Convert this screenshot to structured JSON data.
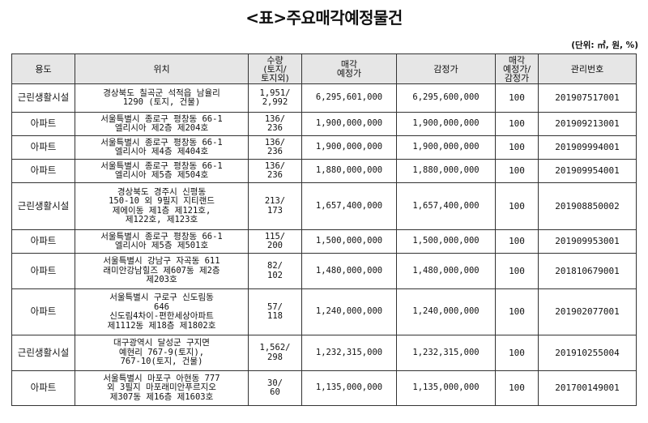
{
  "title": "<표>주요매각예정물건",
  "unit": "(단위: ㎡, 원, %)",
  "headers": {
    "use": "용도",
    "location": "위치",
    "quantity": "수량\n(토지/\n토지외)",
    "sale_price": "매각\n예정가",
    "appraisal": "감정가",
    "ratio": "매각\n예정가/\n감정가",
    "mgmt_no": "관리번호"
  },
  "rows": [
    {
      "use": "근린생활시설",
      "location": "경상북도 칠곡군 석적읍 남율리\n1290 (토지, 건물)",
      "quantity": "1,951/\n2,992",
      "sale_price": "6,295,601,000",
      "appraisal": "6,295,600,000",
      "ratio": "100",
      "mgmt_no": "201907517001"
    },
    {
      "use": "아파트",
      "location": "서울특별시 종로구 평창동 66-1\n엘리시아 제2층 제204호",
      "quantity": "136/\n236",
      "sale_price": "1,900,000,000",
      "appraisal": "1,900,000,000",
      "ratio": "100",
      "mgmt_no": "201909213001"
    },
    {
      "use": "아파트",
      "location": "서울특별시 종로구 평창동 66-1\n엘리시아 제4층 제404호",
      "quantity": "136/\n236",
      "sale_price": "1,900,000,000",
      "appraisal": "1,900,000,000",
      "ratio": "100",
      "mgmt_no": "201909994001"
    },
    {
      "use": "아파트",
      "location": "서울특별시 종로구 평창동 66-1\n엘리시아 제5층 제504호",
      "quantity": "136/\n236",
      "sale_price": "1,880,000,000",
      "appraisal": "1,880,000,000",
      "ratio": "100",
      "mgmt_no": "201909954001"
    },
    {
      "use": "근린생활시설",
      "location": "경상북도 경주시 신평동\n150-10 외 9필지 지티랜드\n제에이동 제1층 제121호,\n제122호, 제123호",
      "quantity": "213/\n173",
      "sale_price": "1,657,400,000",
      "appraisal": "1,657,400,000",
      "ratio": "100",
      "mgmt_no": "201908850002"
    },
    {
      "use": "아파트",
      "location": "서울특별시 종로구 평창동 66-1\n엘리시아 제5층 제501호",
      "quantity": "115/\n200",
      "sale_price": "1,500,000,000",
      "appraisal": "1,500,000,000",
      "ratio": "100",
      "mgmt_no": "201909953001"
    },
    {
      "use": "아파트",
      "location": "서울특별시 강남구 자곡동 611\n래미안강남힐즈 제607동 제2층\n제203호",
      "quantity": "82/\n102",
      "sale_price": "1,480,000,000",
      "appraisal": "1,480,000,000",
      "ratio": "100",
      "mgmt_no": "201810679001"
    },
    {
      "use": "아파트",
      "location": "서울특별시 구로구 신도림동\n646\n신도림4차이-편한세상아파트\n제1112동 제18층 제1802호",
      "quantity": "57/\n118",
      "sale_price": "1,240,000,000",
      "appraisal": "1,240,000,000",
      "ratio": "100",
      "mgmt_no": "201902077001"
    },
    {
      "use": "근린생활시설",
      "location": "대구광역시 달성군 구지면\n예현리 767-9(토지),\n767-10(토지, 건물)",
      "quantity": "1,562/\n298",
      "sale_price": "1,232,315,000",
      "appraisal": "1,232,315,000",
      "ratio": "100",
      "mgmt_no": "201910255004"
    },
    {
      "use": "아파트",
      "location": "서울특별시 마포구 아현동 777\n외 3필지 마포래미안푸르지오\n제307동 제16층 제1603호",
      "quantity": "30/\n60",
      "sale_price": "1,135,000,000",
      "appraisal": "1,135,000,000",
      "ratio": "100",
      "mgmt_no": "201700149001"
    }
  ]
}
